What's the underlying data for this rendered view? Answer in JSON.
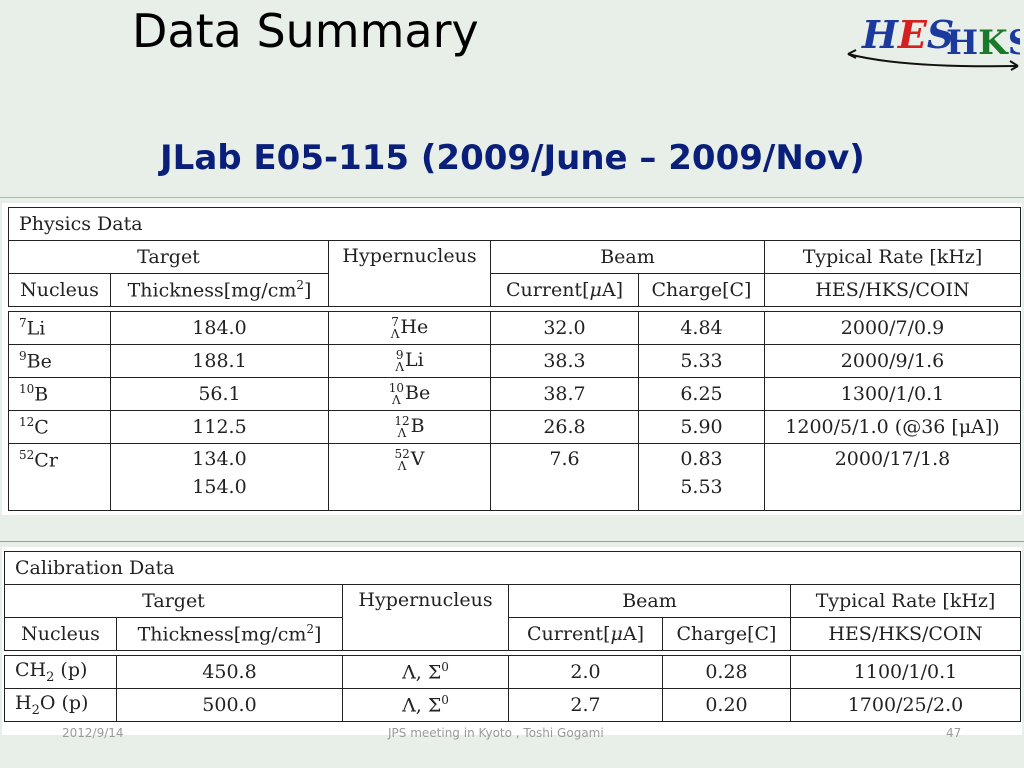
{
  "header": {
    "title": "Data Summary",
    "subtitle": "JLab E05-115 (2009/June – 2009/Nov)",
    "logo_left": "HES",
    "logo_right": "HKS"
  },
  "physics": {
    "caption": "Physics Data",
    "group_headers": [
      "Target",
      "Hypernucleus",
      "Beam",
      "Typical Rate [kHz]"
    ],
    "sub_headers": [
      "Nucleus",
      "Thickness[mg/cm",
      "2",
      "]",
      "Current[",
      "μ",
      "A]",
      "Charge[C]",
      "HES/HKS/COIN"
    ],
    "rows": [
      {
        "mass": "7",
        "nucleus": "Li",
        "thickness": "184.0",
        "thickness2": "",
        "hyp_mass": "7",
        "hyp_sub": "Λ",
        "hyp": "He",
        "current": "32.0",
        "charge": "4.84",
        "charge2": "",
        "rate": "2000/7/0.9"
      },
      {
        "mass": "9",
        "nucleus": "Be",
        "thickness": "188.1",
        "thickness2": "",
        "hyp_mass": "9",
        "hyp_sub": "Λ",
        "hyp": "Li",
        "current": "38.3",
        "charge": "5.33",
        "charge2": "",
        "rate": "2000/9/1.6"
      },
      {
        "mass": "10",
        "nucleus": "B",
        "thickness": "56.1",
        "thickness2": "",
        "hyp_mass": "10",
        "hyp_sub": "Λ",
        "hyp": "Be",
        "current": "38.7",
        "charge": "6.25",
        "charge2": "",
        "rate": "1300/1/0.1"
      },
      {
        "mass": "12",
        "nucleus": "C",
        "thickness": "112.5",
        "thickness2": "",
        "hyp_mass": "12",
        "hyp_sub": "Λ",
        "hyp": "B",
        "current": "26.8",
        "charge": "5.90",
        "charge2": "",
        "rate": "1200/5/1.0 (@36 [μA])"
      },
      {
        "mass": "52",
        "nucleus": "Cr",
        "thickness": "134.0",
        "thickness2": "154.0",
        "hyp_mass": "52",
        "hyp_sub": "Λ",
        "hyp": "V",
        "current": "7.6",
        "charge": "0.83",
        "charge2": "5.53",
        "rate": "2000/17/1.8"
      }
    ]
  },
  "calibration": {
    "caption": "Calibration Data",
    "rows": [
      {
        "nucleus_pre": "CH",
        "nucleus_sub": "2",
        "nucleus_post": " (p)",
        "thickness": "450.8",
        "hyp": "Λ, Σ",
        "hyp_sup": "0",
        "current": "2.0",
        "charge": "0.28",
        "rate": "1100/1/0.1"
      },
      {
        "nucleus_pre": "H",
        "nucleus_sub": "2",
        "nucleus_post": "O (p)",
        "thickness": "500.0",
        "hyp": "Λ, Σ",
        "hyp_sup": "0",
        "current": "2.7",
        "charge": "0.20",
        "rate": "1700/25/2.0"
      }
    ]
  },
  "footer": {
    "date": "2012/9/14",
    "meeting": "JPS meeting in Kyoto , Toshi Gogami",
    "page": "47"
  },
  "colors": {
    "subtitle": "#0a1f7a",
    "logo_blue": "#1c3a9e",
    "logo_red": "#d42020",
    "logo_green": "#1a7a2a"
  }
}
